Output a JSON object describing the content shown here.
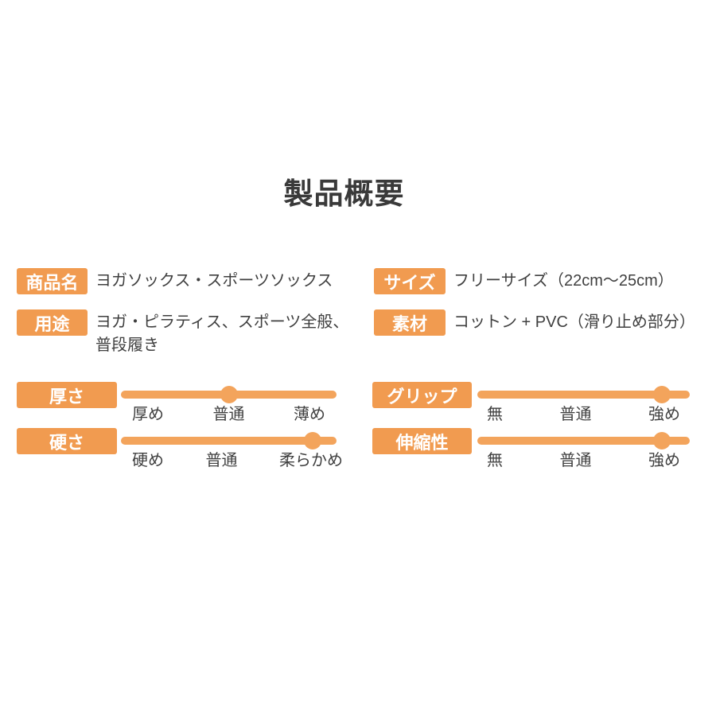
{
  "page": {
    "title": "製品概要"
  },
  "colors": {
    "badge_orange": "#F19B50",
    "track_orange": "#F3A45C",
    "badge_text": "#FFFFFF",
    "body_text": "#3F3F3F",
    "title_text": "#3A3A3A",
    "background": "#FFFFFF"
  },
  "info": {
    "product_name": {
      "label": "商品名",
      "value": "ヨガソックス・スポーツソックス"
    },
    "usage": {
      "label": "用途",
      "value_line1": "ヨガ・ピラティス、スポーツ全般、",
      "value_line2": "普段履き"
    },
    "size": {
      "label": "サイズ",
      "value": "フリーサイズ（22cm〜25cm）"
    },
    "material": {
      "label": "素材",
      "value": "コットン + PVC（滑り止め部分）"
    }
  },
  "sliders": {
    "thickness": {
      "label": "厚さ",
      "scale": [
        "厚め",
        "普通",
        "薄め"
      ],
      "value_percent": 50
    },
    "hardness": {
      "label": "硬さ",
      "scale": [
        "硬め",
        "普通",
        "柔らかめ"
      ],
      "value_percent": 89
    },
    "grip": {
      "label": "グリップ",
      "scale": [
        "無",
        "普通",
        "強め"
      ],
      "value_percent": 87
    },
    "elasticity": {
      "label": "伸縮性",
      "scale": [
        "無",
        "普通",
        "強め"
      ],
      "value_percent": 87
    }
  }
}
